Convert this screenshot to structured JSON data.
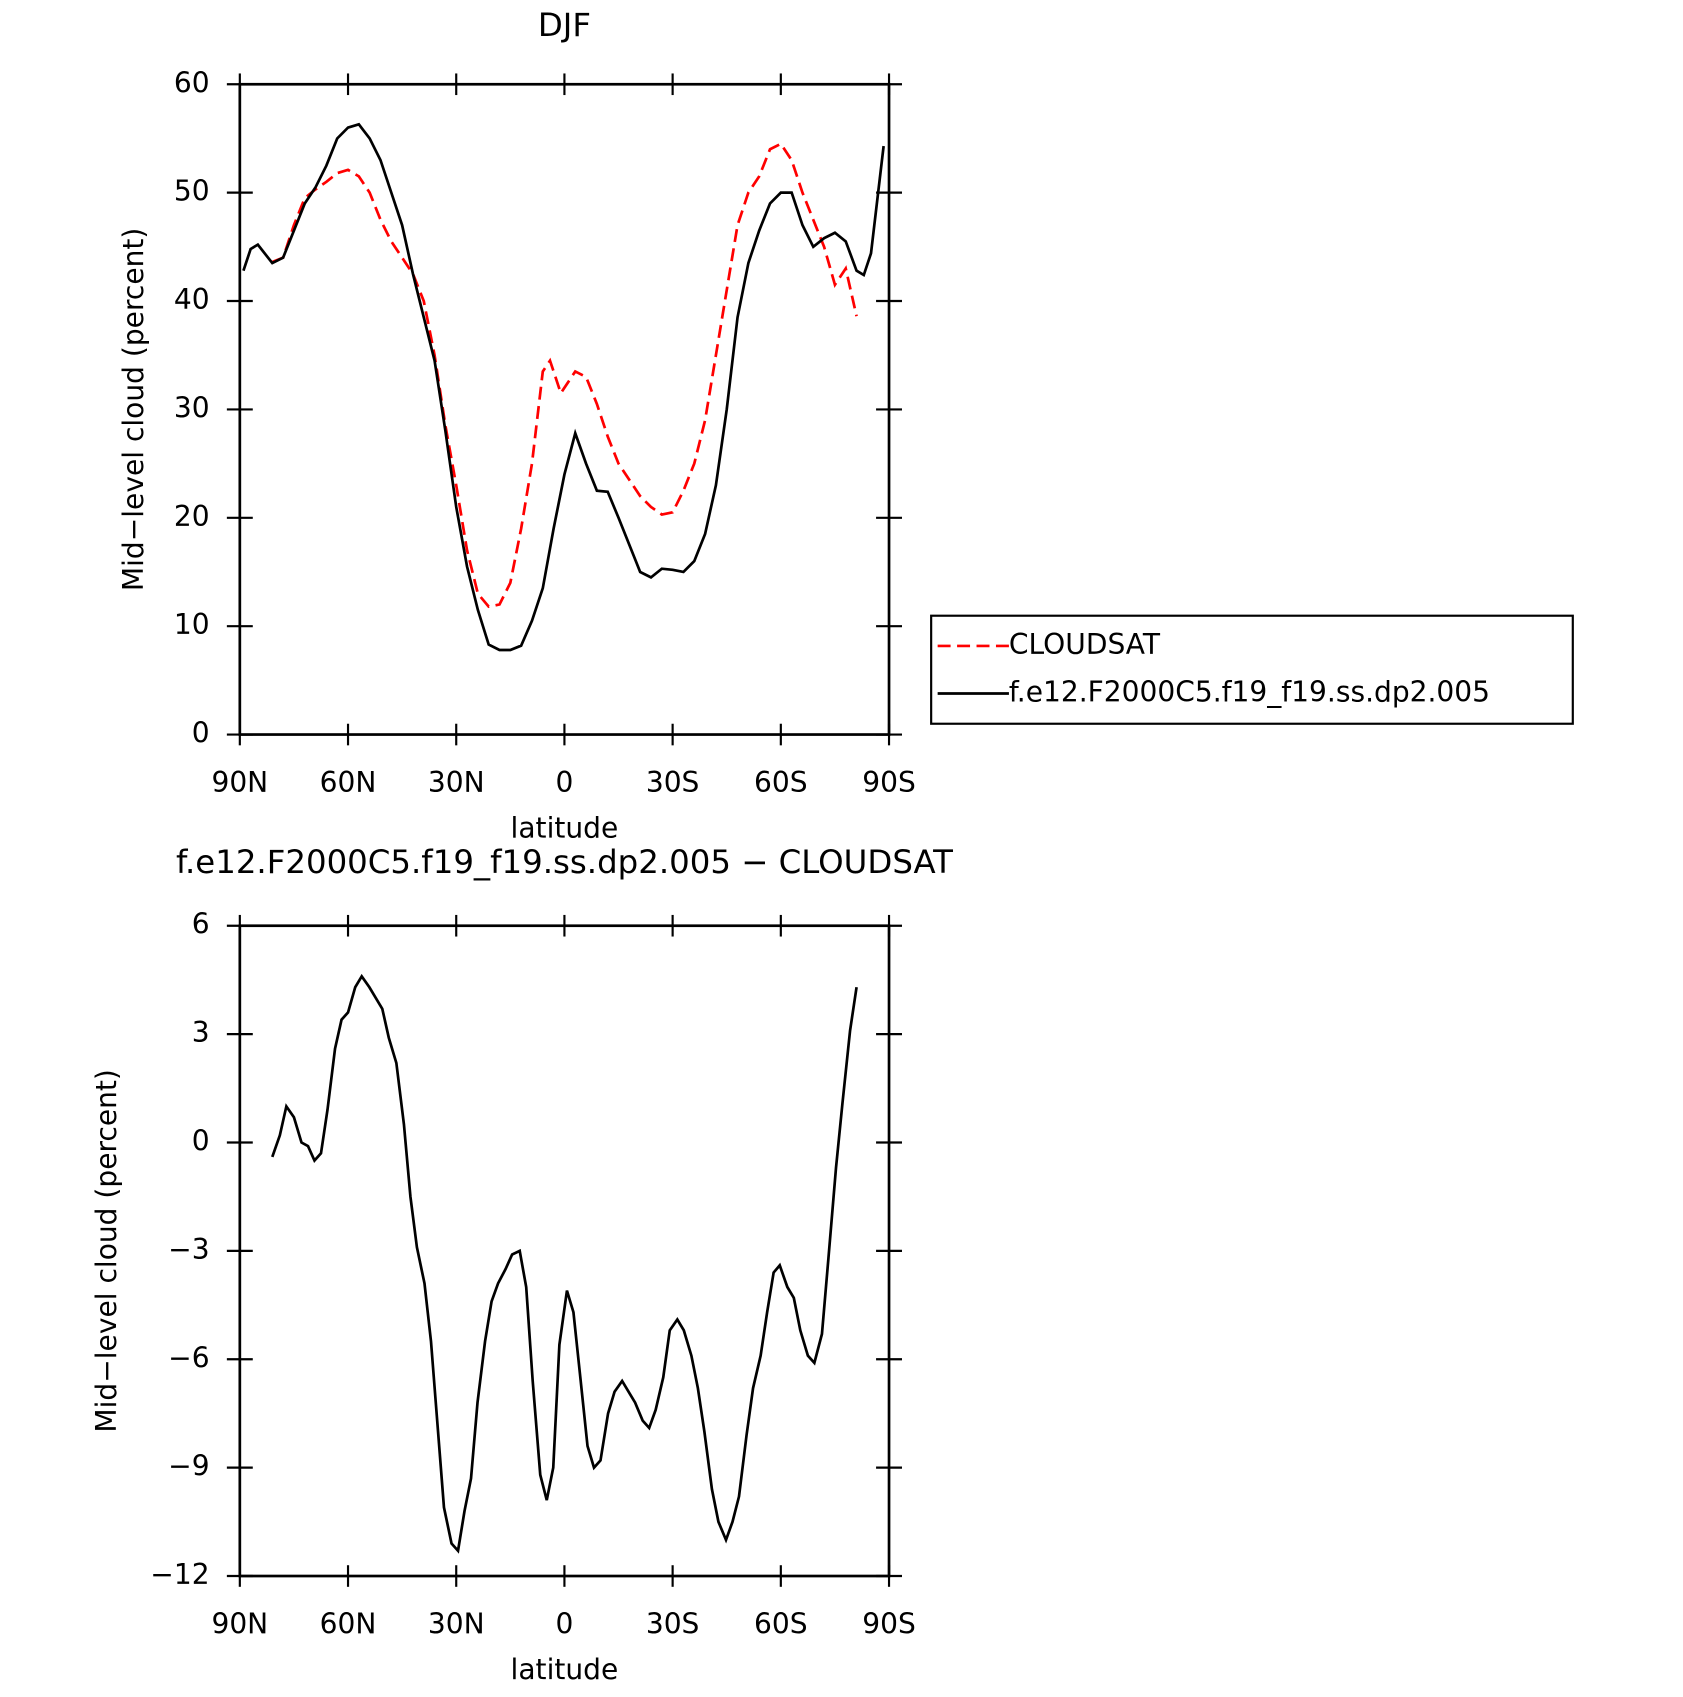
{
  "chart_data": [
    {
      "type": "line",
      "title": "DJF",
      "x_label": "latitude",
      "y_label": "Mid−level cloud (percent)",
      "xlim": [
        90,
        -90
      ],
      "xticks": [
        {
          "value": 90,
          "label": "90N"
        },
        {
          "value": 60,
          "label": "60N"
        },
        {
          "value": 30,
          "label": "30N"
        },
        0,
        {
          "value": -30,
          "label": "30S"
        },
        {
          "value": -60,
          "label": "60S"
        },
        {
          "value": -90,
          "label": "90S"
        }
      ],
      "ylim": [
        0,
        60
      ],
      "yticks": [
        0,
        10,
        20,
        30,
        40,
        50,
        60
      ],
      "legend": "outside right",
      "series": [
        {
          "name": "CLOUDSAT",
          "color": "#ff0000",
          "linestyle": "dashed",
          "x": [
            81,
            78,
            75,
            72,
            69,
            66,
            63,
            60,
            57,
            54,
            51,
            48,
            45,
            42,
            39,
            36,
            33,
            30,
            27,
            24,
            21,
            18,
            15,
            12,
            9,
            6,
            4,
            1,
            -3,
            -6,
            -9,
            -12,
            -15,
            -18,
            -21,
            -24,
            -27,
            -30,
            -33,
            -36,
            -39,
            -42,
            -45,
            -48,
            -51,
            -54,
            -57,
            -60,
            -63,
            -66,
            -69,
            -72,
            -75,
            -78,
            -81
          ],
          "values": [
            43.6,
            44,
            47,
            49.5,
            50.3,
            51,
            51.8,
            52.1,
            51.5,
            50,
            47.5,
            45.5,
            44,
            42.5,
            40,
            35,
            28.5,
            23,
            17,
            13,
            11.8,
            12,
            14,
            19,
            25,
            33.5,
            34.5,
            31.5,
            33.5,
            33,
            30.5,
            27.5,
            25,
            23.5,
            22,
            21,
            20.3,
            20.5,
            22.5,
            25,
            29,
            35,
            41,
            47,
            50,
            51.5,
            54,
            54.5,
            53,
            50,
            47.5,
            45,
            41.5,
            43,
            38.6
          ]
        },
        {
          "name": "f.e12.F2000C5.f19_f19.ss.dp2.005",
          "color": "#000000",
          "linestyle": "solid",
          "x": [
            89,
            87,
            85,
            81,
            78,
            75,
            72,
            69,
            66,
            63,
            60,
            57,
            54,
            51,
            48,
            45,
            42,
            39,
            36,
            33,
            30,
            27,
            24,
            21,
            18,
            15,
            12,
            9,
            6,
            3,
            0,
            -3,
            -6,
            -9,
            -12,
            -15,
            -18,
            -21,
            -24,
            -27,
            -30,
            -33,
            -36,
            -39,
            -42,
            -45,
            -48,
            -51,
            -54,
            -57,
            -60,
            -63,
            -66,
            -69,
            -72,
            -75,
            -78,
            -81,
            -83,
            -85,
            -88.5
          ],
          "values": [
            42.8,
            44.8,
            45.2,
            43.5,
            44,
            46.5,
            49,
            50.5,
            52.5,
            55,
            56,
            56.3,
            55,
            53,
            50,
            47,
            42.5,
            38.5,
            34.5,
            28,
            21,
            15.5,
            11.5,
            8.3,
            7.8,
            7.8,
            8.2,
            10.5,
            13.5,
            19,
            24,
            27.8,
            25,
            22.5,
            22.4,
            20,
            17.5,
            15,
            14.5,
            15.3,
            15.2,
            15,
            16,
            18.5,
            23,
            30,
            38.5,
            43.5,
            46.5,
            49,
            50,
            50,
            47,
            45,
            45.8,
            46.3,
            45.5,
            42.8,
            42.4,
            44.4,
            54.3
          ]
        }
      ]
    },
    {
      "type": "line",
      "title": "f.e12.F2000C5.f19_f19.ss.dp2.005 − CLOUDSAT",
      "x_label": "latitude",
      "y_label": "Mid−level cloud (percent)",
      "xlim": [
        90,
        -90
      ],
      "xticks": [
        {
          "value": 90,
          "label": "90N"
        },
        {
          "value": 60,
          "label": "60N"
        },
        {
          "value": 30,
          "label": "30N"
        },
        0,
        {
          "value": -30,
          "label": "30S"
        },
        {
          "value": -60,
          "label": "60S"
        },
        {
          "value": -90,
          "label": "90S"
        }
      ],
      "ylim": [
        -12,
        6
      ],
      "yticks": [
        {
          "value": -12,
          "label": "−12"
        },
        {
          "value": -9,
          "label": "−9"
        },
        {
          "value": -6,
          "label": "−6"
        },
        {
          "value": -3,
          "label": "−3"
        },
        0,
        3,
        6
      ],
      "series": [
        {
          "color": "#000000",
          "linestyle": "solid",
          "x": [
            81,
            78.9,
            77.1,
            75,
            72.9,
            71.1,
            69.3,
            67.5,
            65.7,
            63.6,
            61.8,
            60,
            58,
            56.2,
            54.1,
            50.5,
            48.7,
            46.6,
            44.5,
            42.7,
            40.9,
            38.8,
            37,
            35.2,
            33.4,
            31.3,
            29.5,
            27.7,
            25.9,
            24.1,
            22,
            20.2,
            18.4,
            16.3,
            14.5,
            12.4,
            10.6,
            8.8,
            6.7,
            4.9,
            3.1,
            1.4,
            -0.7,
            -2.5,
            -4.3,
            -6.4,
            -8.2,
            -10,
            -12.1,
            -13.9,
            -16,
            -17.8,
            -19.6,
            -21.7,
            -23.5,
            -25.3,
            -27.4,
            -29.2,
            -31.3,
            -33.1,
            -35.2,
            -37,
            -38.8,
            -40.9,
            -42.7,
            -44.8,
            -46.6,
            -48.4,
            -50.5,
            -52.3,
            -54.4,
            -56.2,
            -58,
            -59.7,
            -61.8,
            -63.6,
            -65.4,
            -67.5,
            -69.3,
            -71.4,
            -73.2,
            -75.3,
            -77.1,
            -79.2,
            -81
          ],
          "values": [
            -0.4,
            0.2,
            1.0,
            0.7,
            0,
            -0.1,
            -0.5,
            -0.3,
            0.9,
            2.6,
            3.4,
            3.6,
            4.3,
            4.6,
            4.3,
            3.7,
            2.9,
            2.2,
            0.5,
            -1.5,
            -2.9,
            -3.9,
            -5.5,
            -7.8,
            -10.1,
            -11.1,
            -11.3,
            -10.2,
            -9.3,
            -7.2,
            -5.5,
            -4.4,
            -3.9,
            -3.5,
            -3.1,
            -3.0,
            -4.0,
            -6.6,
            -9.2,
            -9.9,
            -9.0,
            -5.6,
            -4.1,
            -4.7,
            -6.4,
            -8.4,
            -9.0,
            -8.8,
            -7.5,
            -6.9,
            -6.6,
            -6.9,
            -7.2,
            -7.7,
            -7.9,
            -7.4,
            -6.5,
            -5.2,
            -4.9,
            -5.2,
            -5.9,
            -6.8,
            -8.0,
            -9.6,
            -10.5,
            -11.0,
            -10.5,
            -9.8,
            -8.1,
            -6.8,
            -5.9,
            -4.7,
            -3.6,
            -3.4,
            -4.0,
            -4.3,
            -5.2,
            -5.9,
            -6.1,
            -5.3,
            -3.2,
            -0.7,
            1.1,
            3.1,
            4.3
          ]
        }
      ]
    }
  ]
}
